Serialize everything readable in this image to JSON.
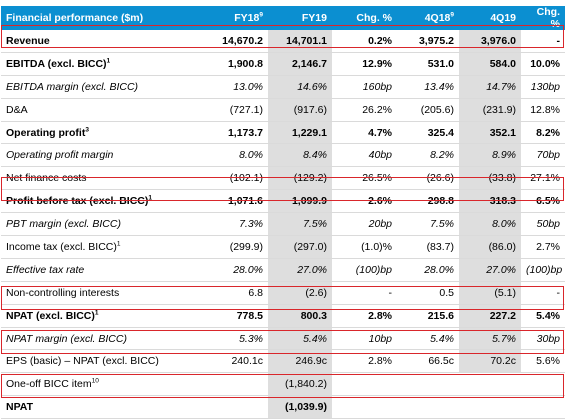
{
  "header": {
    "label": "Financial performance ($m)",
    "cols": [
      {
        "text": "FY18",
        "sup": "9"
      },
      {
        "text": "FY19",
        "sup": ""
      },
      {
        "text": "Chg. %",
        "sup": ""
      },
      {
        "text": "4Q18",
        "sup": "9"
      },
      {
        "text": "4Q19",
        "sup": ""
      },
      {
        "text": "Chg. %",
        "sup": ""
      }
    ]
  },
  "rows": [
    {
      "label": "Revenue",
      "sup": "",
      "style": "bold",
      "values": [
        "14,670.2",
        "14,701.1",
        "0.2%",
        "3,975.2",
        "3,976.0",
        "-"
      ]
    },
    {
      "label": "EBITDA (excl. BICC)",
      "sup": "1",
      "style": "bold",
      "values": [
        "1,900.8",
        "2,146.7",
        "12.9%",
        "531.0",
        "584.0",
        "10.0%"
      ]
    },
    {
      "label": "EBITDA margin (excl. BICC)",
      "sup": "",
      "style": "italic",
      "values": [
        "13.0%",
        "14.6%",
        "160bp",
        "13.4%",
        "14.7%",
        "130bp"
      ]
    },
    {
      "label": "D&A",
      "sup": "",
      "style": "normal",
      "values": [
        "(727.1)",
        "(917.6)",
        "26.2%",
        "(205.6)",
        "(231.9)",
        "12.8%"
      ]
    },
    {
      "label": "Operating profit",
      "sup": "3",
      "style": "bold",
      "values": [
        "1,173.7",
        "1,229.1",
        "4.7%",
        "325.4",
        "352.1",
        "8.2%"
      ]
    },
    {
      "label": "Operating profit margin",
      "sup": "",
      "style": "italic",
      "values": [
        "8.0%",
        "8.4%",
        "40bp",
        "8.2%",
        "8.9%",
        "70bp"
      ]
    },
    {
      "label": "Net finance costs",
      "sup": "",
      "style": "normal",
      "values": [
        "(102.1)",
        "(129.2)",
        "26.5%",
        "(26.6)",
        "(33.8)",
        "27.1%"
      ]
    },
    {
      "label": "Profit before tax (excl. BICC)",
      "sup": "1",
      "style": "bold",
      "values": [
        "1,071.6",
        "1,099.9",
        "2.6%",
        "298.8",
        "318.3",
        "6.5%"
      ]
    },
    {
      "label": "PBT margin (excl. BICC)",
      "sup": "",
      "style": "italic",
      "values": [
        "7.3%",
        "7.5%",
        "20bp",
        "7.5%",
        "8.0%",
        "50bp"
      ]
    },
    {
      "label": "Income tax (excl. BICC)",
      "sup": "1",
      "style": "normal",
      "values": [
        "(299.9)",
        "(297.0)",
        "(1.0)%",
        "(83.7)",
        "(86.0)",
        "2.7%"
      ]
    },
    {
      "label": "Effective tax rate",
      "sup": "",
      "style": "italic",
      "values": [
        "28.0%",
        "27.0%",
        "(100)bp",
        "28.0%",
        "27.0%",
        "(100)bp"
      ]
    },
    {
      "label": "Non-controlling interests",
      "sup": "",
      "style": "normal",
      "values": [
        "6.8",
        "(2.6)",
        "-",
        "0.5",
        "(5.1)",
        "-"
      ]
    },
    {
      "label": "NPAT (excl. BICC)",
      "sup": "1",
      "style": "bold",
      "values": [
        "778.5",
        "800.3",
        "2.8%",
        "215.6",
        "227.2",
        "5.4%"
      ]
    },
    {
      "label": "NPAT margin (excl. BICC)",
      "sup": "",
      "style": "italic",
      "values": [
        "5.3%",
        "5.4%",
        "10bp",
        "5.4%",
        "5.7%",
        "30bp"
      ]
    },
    {
      "label": "EPS (basic) – NPAT (excl. BICC)",
      "sup": "",
      "style": "normal",
      "values": [
        "240.1c",
        "246.9c",
        "2.8%",
        "66.5c",
        "70.2c",
        "5.6%"
      ]
    },
    {
      "label": "One-off BICC item",
      "sup": "10",
      "style": "normal",
      "values": [
        "",
        "(1,840.2)",
        "",
        "",
        "",
        ""
      ]
    },
    {
      "label": "NPAT",
      "sup": "",
      "style": "bold",
      "values": [
        "",
        "(1,039.9)",
        "",
        "",
        "",
        ""
      ]
    }
  ],
  "highlighted_rows": [
    "Revenue",
    "Profit before tax (excl. BICC)",
    "NPAT (excl. BICC)",
    "EPS (basic) – NPAT (excl. BICC)",
    "NPAT"
  ],
  "colors": {
    "header_bg": "#0b8fd1",
    "shaded_col_bg": "#dedede",
    "highlight_border": "#d9262b"
  }
}
